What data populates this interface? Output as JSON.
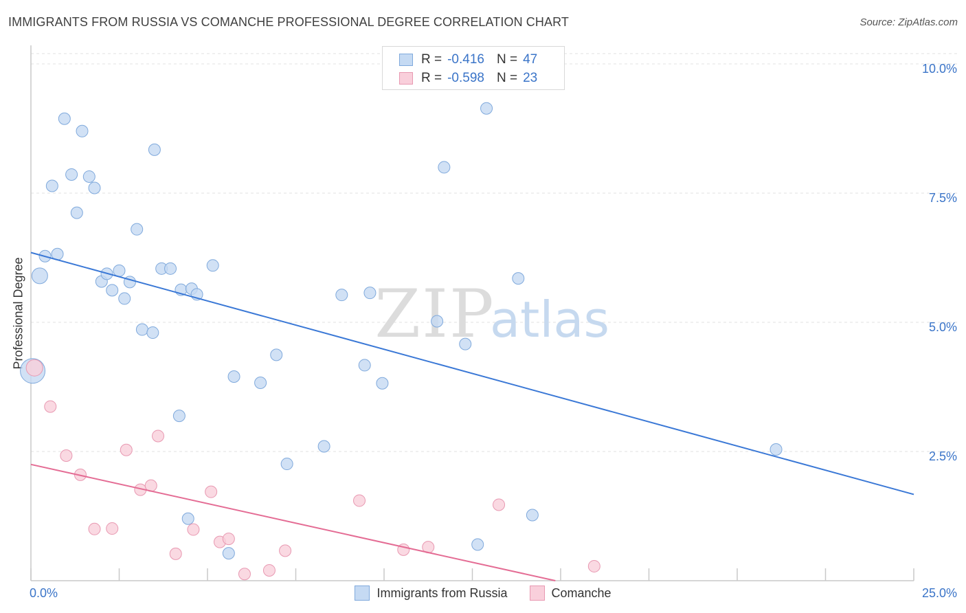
{
  "header": {
    "title": "IMMIGRANTS FROM RUSSIA VS COMANCHE PROFESSIONAL DEGREE CORRELATION CHART",
    "source": "Source: ZipAtlas.com"
  },
  "watermark": {
    "zip": "ZIP",
    "atlas": "atlas"
  },
  "legend_top": {
    "rows": [
      {
        "r_label": "R =",
        "r_value": "-0.416",
        "n_label": "N =",
        "n_value": "47",
        "color": "#a9c8ee"
      },
      {
        "r_label": "R =",
        "r_value": "-0.598",
        "n_label": "N =",
        "n_value": "23",
        "color": "#f4b6c8"
      }
    ]
  },
  "legend_bottom": {
    "items": [
      {
        "label": "Immigrants from Russia",
        "color": "#a9c8ee"
      },
      {
        "label": "Comanche",
        "color": "#f4b6c8"
      }
    ]
  },
  "colors": {
    "blue_fill": "#c5daf3",
    "blue_stroke": "#7fa9dc",
    "blue_line": "#3a78d6",
    "pink_fill": "#f9cfdb",
    "pink_stroke": "#e898b1",
    "pink_line": "#e46c94",
    "tick_text": "#3a74c8",
    "grid": "#e2e2e2"
  },
  "chart_data": {
    "type": "scatter",
    "title": "IMMIGRANTS FROM RUSSIA VS COMANCHE PROFESSIONAL DEGREE CORRELATION CHART",
    "xlabel": "",
    "ylabel": "Professional Degree",
    "xlim": [
      0,
      25
    ],
    "ylim": [
      0,
      10.2
    ],
    "x_tick_labels": [
      {
        "value": 0,
        "label": "0.0%"
      },
      {
        "value": 25,
        "label": "25.0%"
      }
    ],
    "y_tick_labels": [
      {
        "value": 2.5,
        "label": "2.5%"
      },
      {
        "value": 5.0,
        "label": "5.0%"
      },
      {
        "value": 7.5,
        "label": "7.5%"
      },
      {
        "value": 10.0,
        "label": "10.0%"
      }
    ],
    "grid": "horizontal dashed",
    "legend": "top-center",
    "series": [
      {
        "name": "Immigrants from Russia",
        "color": "#a9c8ee",
        "points": [
          [
            0.05,
            4.06
          ],
          [
            0.25,
            5.9
          ],
          [
            0.4,
            6.28
          ],
          [
            0.75,
            6.32
          ],
          [
            0.6,
            7.64
          ],
          [
            0.95,
            8.94
          ],
          [
            1.15,
            7.86
          ],
          [
            1.3,
            7.12
          ],
          [
            1.45,
            8.7
          ],
          [
            1.65,
            7.82
          ],
          [
            1.8,
            7.6
          ],
          [
            2.0,
            5.79
          ],
          [
            2.15,
            5.94
          ],
          [
            2.3,
            5.62
          ],
          [
            2.5,
            6.0
          ],
          [
            2.65,
            5.46
          ],
          [
            2.8,
            5.78
          ],
          [
            3.0,
            6.8
          ],
          [
            3.15,
            4.86
          ],
          [
            3.45,
            4.8
          ],
          [
            3.5,
            8.34
          ],
          [
            3.7,
            6.04
          ],
          [
            3.95,
            6.04
          ],
          [
            4.2,
            3.19
          ],
          [
            4.25,
            5.63
          ],
          [
            4.55,
            5.65
          ],
          [
            4.7,
            5.54
          ],
          [
            5.15,
            6.1
          ],
          [
            4.45,
            1.2
          ],
          [
            5.6,
            0.53
          ],
          [
            5.75,
            3.95
          ],
          [
            6.5,
            3.83
          ],
          [
            6.95,
            4.37
          ],
          [
            7.25,
            2.26
          ],
          [
            8.3,
            2.6
          ],
          [
            8.8,
            5.53
          ],
          [
            9.45,
            4.17
          ],
          [
            9.6,
            5.57
          ],
          [
            9.95,
            3.82
          ],
          [
            11.5,
            5.02
          ],
          [
            11.7,
            8.0
          ],
          [
            12.3,
            4.58
          ],
          [
            12.65,
            0.7
          ],
          [
            12.9,
            9.14
          ],
          [
            13.8,
            5.85
          ],
          [
            14.2,
            1.27
          ],
          [
            21.1,
            2.54
          ]
        ],
        "trend": {
          "x0": 0,
          "y0": 6.35,
          "x1": 25,
          "y1": 1.67
        }
      },
      {
        "name": "Comanche",
        "color": "#f4b6c8",
        "points": [
          [
            0.1,
            4.12
          ],
          [
            0.55,
            3.37
          ],
          [
            1.0,
            2.42
          ],
          [
            1.4,
            2.05
          ],
          [
            1.8,
            1.0
          ],
          [
            2.3,
            1.01
          ],
          [
            2.7,
            2.53
          ],
          [
            3.1,
            1.76
          ],
          [
            3.4,
            1.84
          ],
          [
            3.6,
            2.8
          ],
          [
            4.1,
            0.52
          ],
          [
            4.6,
            0.99
          ],
          [
            5.1,
            1.72
          ],
          [
            5.35,
            0.75
          ],
          [
            5.6,
            0.81
          ],
          [
            6.05,
            0.13
          ],
          [
            6.75,
            0.2
          ],
          [
            7.2,
            0.58
          ],
          [
            9.3,
            1.55
          ],
          [
            10.55,
            0.6
          ],
          [
            11.25,
            0.65
          ],
          [
            13.25,
            1.47
          ],
          [
            15.95,
            0.28
          ]
        ],
        "trend": {
          "x0": 0,
          "y0": 2.25,
          "x1": 14.85,
          "y1": 0.0
        }
      }
    ]
  }
}
